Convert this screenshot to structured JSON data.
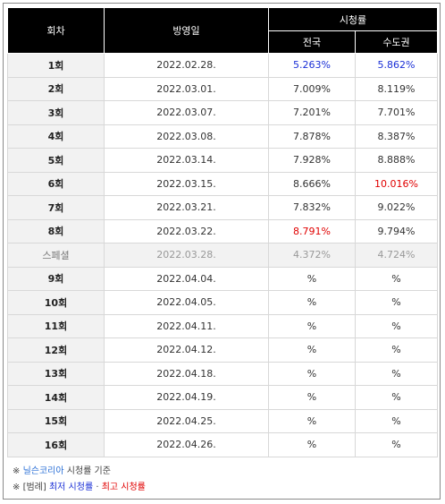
{
  "header": {
    "episode": "회차",
    "airdate": "방영일",
    "ratings": "시청률",
    "nationwide": "전국",
    "capital": "수도권"
  },
  "rows": [
    {
      "episode": "1회",
      "date": "2022.02.28.",
      "nationwide": "5.263%",
      "capital": "5.862%",
      "nat_mark": "low",
      "cap_mark": "low"
    },
    {
      "episode": "2회",
      "date": "2022.03.01.",
      "nationwide": "7.009%",
      "capital": "8.119%",
      "nat_mark": "",
      "cap_mark": ""
    },
    {
      "episode": "3회",
      "date": "2022.03.07.",
      "nationwide": "7.201%",
      "capital": "7.701%",
      "nat_mark": "",
      "cap_mark": ""
    },
    {
      "episode": "4회",
      "date": "2022.03.08.",
      "nationwide": "7.878%",
      "capital": "8.387%",
      "nat_mark": "",
      "cap_mark": ""
    },
    {
      "episode": "5회",
      "date": "2022.03.14.",
      "nationwide": "7.928%",
      "capital": "8.888%",
      "nat_mark": "",
      "cap_mark": ""
    },
    {
      "episode": "6회",
      "date": "2022.03.15.",
      "nationwide": "8.666%",
      "capital": "10.016%",
      "nat_mark": "",
      "cap_mark": "high"
    },
    {
      "episode": "7회",
      "date": "2022.03.21.",
      "nationwide": "7.832%",
      "capital": "9.022%",
      "nat_mark": "",
      "cap_mark": ""
    },
    {
      "episode": "8회",
      "date": "2022.03.22.",
      "nationwide": "8.791%",
      "capital": "9.794%",
      "nat_mark": "high",
      "cap_mark": ""
    },
    {
      "episode": "스페셜",
      "date": "2022.03.28.",
      "nationwide": "4.372%",
      "capital": "4.724%",
      "nat_mark": "",
      "cap_mark": "",
      "special": true
    },
    {
      "episode": "9회",
      "date": "2022.04.04.",
      "nationwide": "%",
      "capital": "%",
      "nat_mark": "",
      "cap_mark": ""
    },
    {
      "episode": "10회",
      "date": "2022.04.05.",
      "nationwide": "%",
      "capital": "%",
      "nat_mark": "",
      "cap_mark": ""
    },
    {
      "episode": "11회",
      "date": "2022.04.11.",
      "nationwide": "%",
      "capital": "%",
      "nat_mark": "",
      "cap_mark": ""
    },
    {
      "episode": "12회",
      "date": "2022.04.12.",
      "nationwide": "%",
      "capital": "%",
      "nat_mark": "",
      "cap_mark": ""
    },
    {
      "episode": "13회",
      "date": "2022.04.18.",
      "nationwide": "%",
      "capital": "%",
      "nat_mark": "",
      "cap_mark": ""
    },
    {
      "episode": "14회",
      "date": "2022.04.19.",
      "nationwide": "%",
      "capital": "%",
      "nat_mark": "",
      "cap_mark": ""
    },
    {
      "episode": "15회",
      "date": "2022.04.25.",
      "nationwide": "%",
      "capital": "%",
      "nat_mark": "",
      "cap_mark": ""
    },
    {
      "episode": "16회",
      "date": "2022.04.26.",
      "nationwide": "%",
      "capital": "%",
      "nat_mark": "",
      "cap_mark": ""
    }
  ],
  "legend": {
    "line1_mark": "※",
    "line1_source": "닐슨코리아",
    "line1_rest": " 시청률 기준",
    "line2_mark": "※",
    "line2_prefix": "[범례] ",
    "line2_low": "최저 시청률",
    "line2_sep": " · ",
    "line2_high": "최고 시청률"
  },
  "colors": {
    "header_bg": "#000000",
    "lowest": "#1a2fd6",
    "highest": "#e00000"
  }
}
